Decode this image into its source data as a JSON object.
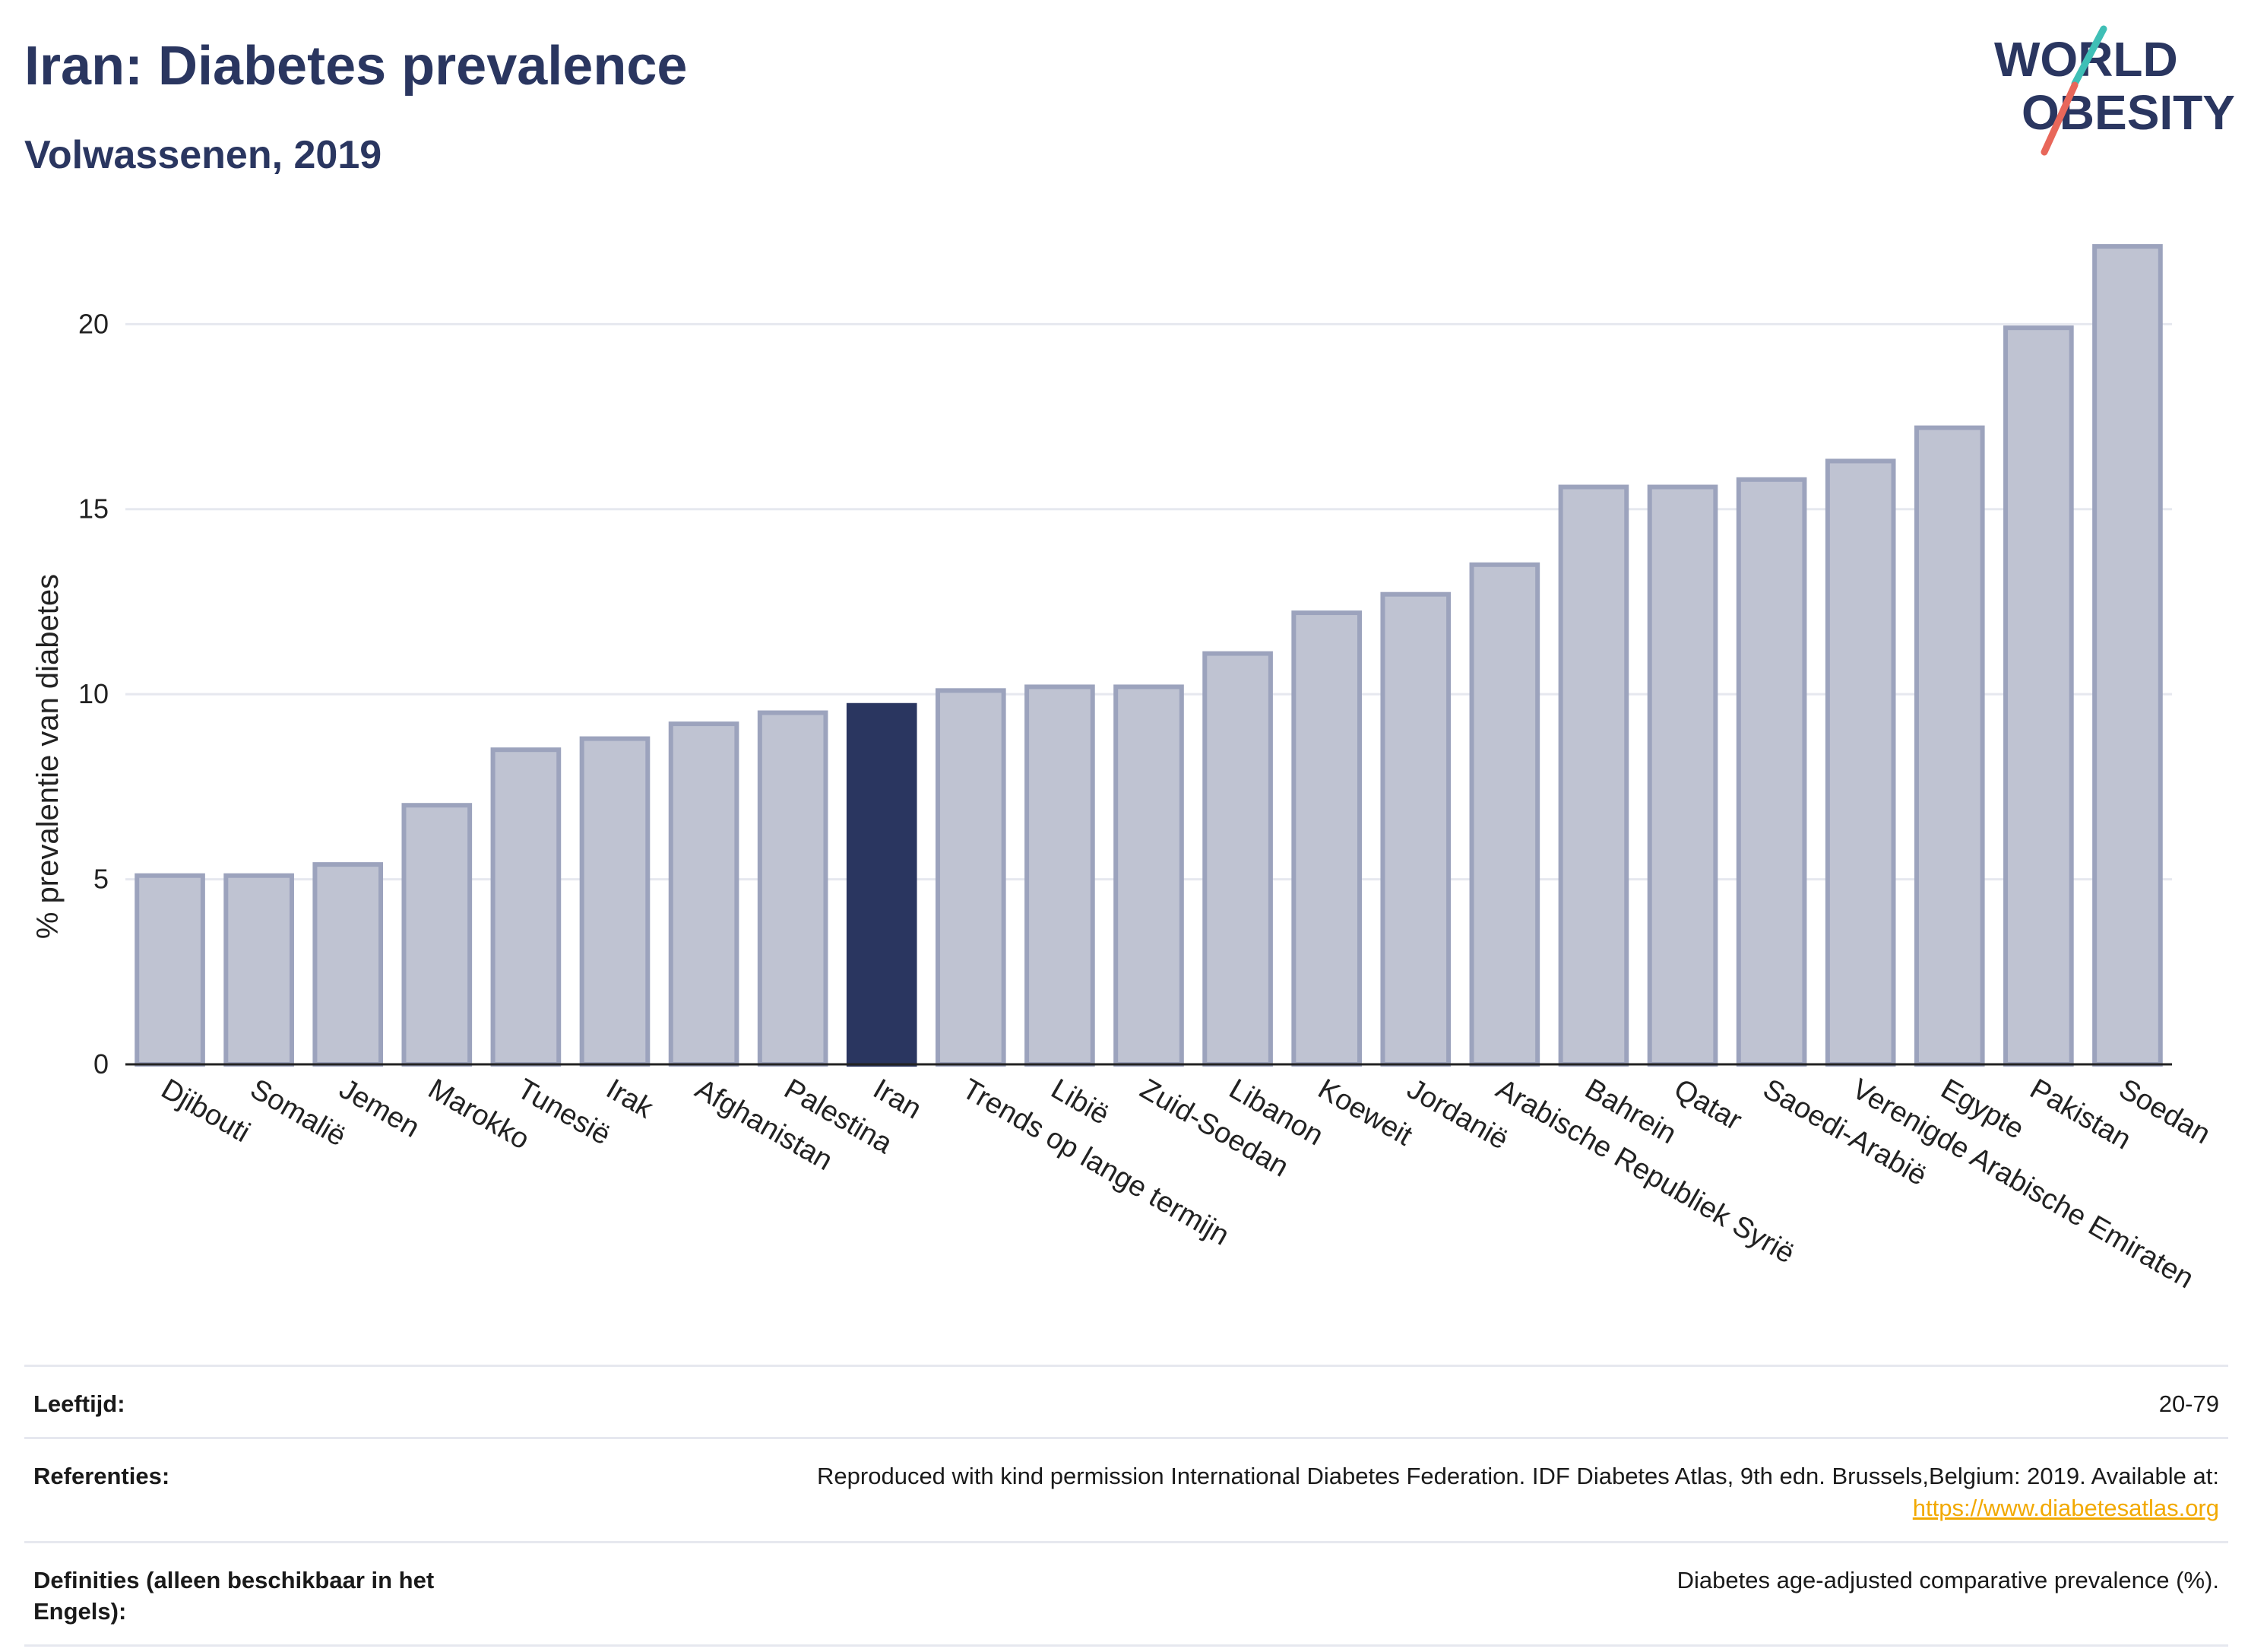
{
  "header": {
    "title": "Iran: Diabetes prevalence",
    "subtitle": "Volwassenen, 2019"
  },
  "logo": {
    "line1": "WORLD",
    "line2": "OBESITY",
    "accent_teal": "#3fbfb6",
    "accent_coral": "#e8675a",
    "text_color": "#2a3660"
  },
  "colors": {
    "bar": "#bfc3d2",
    "bar_stroke": "#9ca3bd",
    "highlight": "#2a3660",
    "grid": "#e6e8ef"
  },
  "chart_data": {
    "type": "bar",
    "ylabel": "% prevalentie van diabetes",
    "ylim": [
      0,
      22.8
    ],
    "yticks": [
      0,
      5,
      10,
      15,
      20
    ],
    "grid": true,
    "highlight": "Iran",
    "categories": [
      "Djibouti",
      "Somalië",
      "Jemen",
      "Marokko",
      "Tunesië",
      "Irak",
      "Afghanistan",
      "Palestina",
      "Iran",
      "Trends op lange termijn",
      "Libië",
      "Zuid-Soedan",
      "Libanon",
      "Koeweit",
      "Jordanië",
      "Arabische Republiek Syrië",
      "Bahrein",
      "Qatar",
      "Saoedi-Arabië",
      "Verenigde Arabische Emiraten",
      "Egypte",
      "Pakistan",
      "Soedan"
    ],
    "values": [
      5.1,
      5.1,
      5.4,
      7.0,
      8.5,
      8.8,
      9.2,
      9.5,
      9.7,
      10.1,
      10.2,
      10.2,
      11.1,
      12.2,
      12.7,
      13.5,
      15.6,
      15.6,
      15.8,
      16.3,
      17.2,
      19.9,
      22.1
    ]
  },
  "info": {
    "age_label": "Leeftijd:",
    "age_value": "20-79",
    "ref_label": "Referenties:",
    "ref_text": "Reproduced with kind permission International Diabetes Federation. IDF Diabetes Atlas, 9th edn. Brussels,Belgium: 2019. Available at:",
    "ref_link": "https://www.diabetesatlas.org",
    "def_label": "Definities (alleen beschikbaar in het Engels):",
    "def_value": "Diabetes age-adjusted comparative prevalence (%)."
  }
}
